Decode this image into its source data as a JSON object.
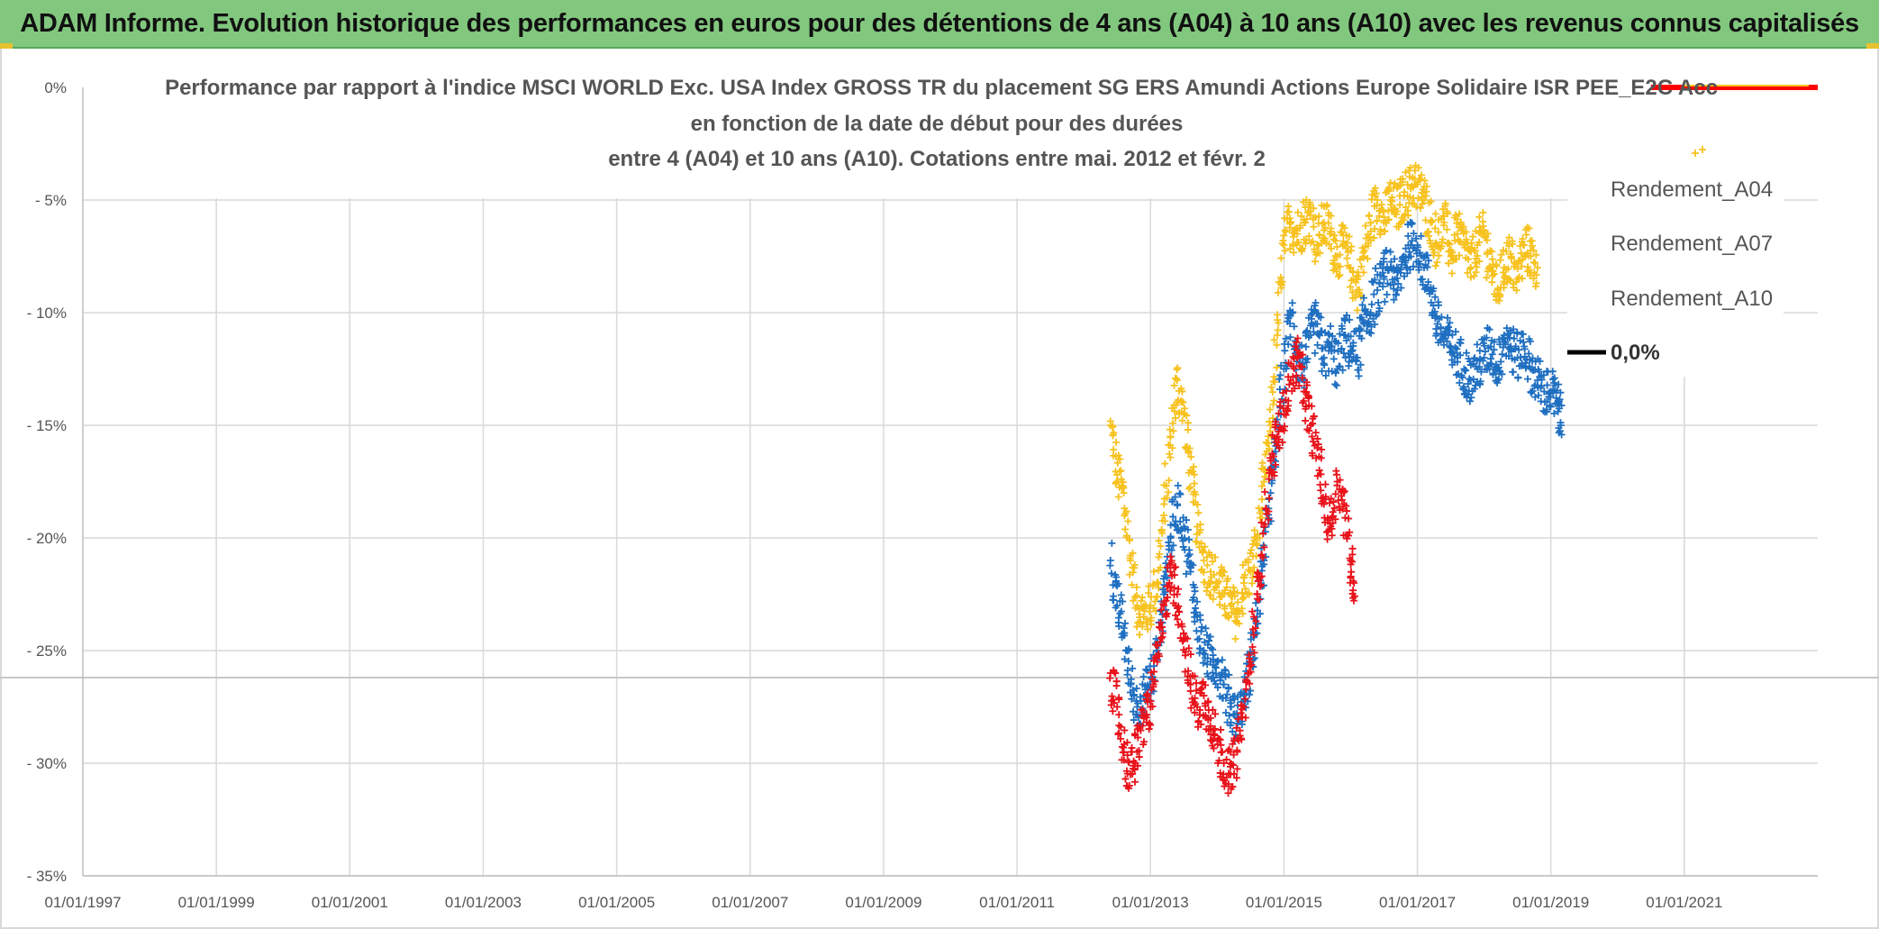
{
  "header": {
    "title": "ADAM Informe. Evolution historique des performances en euros pour des détentions de 4 ans (A04) à 10 ans (A10) avec les revenus connus capitalisés"
  },
  "colors": {
    "banner_bg": "#82c77e",
    "a04": "#f7c21f",
    "a07": "#1f6fc1",
    "a10": "#e8121a",
    "zero_line": "#ff0000",
    "grid": "#d9d9d9"
  },
  "chart_data": {
    "type": "scatter",
    "title_lines": [
      "Performance par rapport à l'indice MSCI WORLD Exc. USA Index GROSS TR  du placement SG ERS Amundi Actions Europe Solidaire ISR PEE_E2C Acc",
      "en fonction de la date de début pour des durées",
      "entre 4 (A04) et 10 ans (A10). Cotations entre mai. 2012 et févr. 2"
    ],
    "xlabel": "",
    "ylabel": "",
    "x_range": [
      1997.0,
      2023.0
    ],
    "ylim": [
      -35,
      0
    ],
    "y_ticks": [
      0,
      -5,
      -10,
      -15,
      -20,
      -25,
      -30,
      -35
    ],
    "y_tick_labels": [
      "0%",
      "- 5%",
      "- 10%",
      "- 15%",
      "- 20%",
      "- 25%",
      "- 30%",
      "- 35%"
    ],
    "x_ticks": [
      1997,
      1999,
      2001,
      2003,
      2005,
      2007,
      2009,
      2011,
      2013,
      2015,
      2017,
      2019,
      2021
    ],
    "x_tick_labels": [
      "01/01/1997",
      "01/01/1999",
      "01/01/2001",
      "01/01/2003",
      "01/01/2005",
      "01/01/2007",
      "01/01/2009",
      "01/01/2011",
      "01/01/2013",
      "01/01/2015",
      "01/01/2017",
      "01/01/2019",
      "01/01/2021"
    ],
    "zero_line": {
      "name": "0,0%",
      "value": 0
    },
    "series": [
      {
        "name": "Rendement_A04",
        "color": "#f7c21f",
        "points": [
          [
            2012.4,
            -15.0
          ],
          [
            2012.5,
            -17.2
          ],
          [
            2012.6,
            -18.0
          ],
          [
            2012.7,
            -21.0
          ],
          [
            2012.8,
            -23.0
          ],
          [
            2012.9,
            -23.5
          ],
          [
            2013.0,
            -23.0
          ],
          [
            2013.1,
            -22.0
          ],
          [
            2013.2,
            -19.0
          ],
          [
            2013.3,
            -15.5
          ],
          [
            2013.4,
            -13.0
          ],
          [
            2013.5,
            -14.5
          ],
          [
            2013.6,
            -17.0
          ],
          [
            2013.7,
            -19.5
          ],
          [
            2013.8,
            -21.0
          ],
          [
            2013.9,
            -21.5
          ],
          [
            2014.0,
            -22.0
          ],
          [
            2014.1,
            -22.5
          ],
          [
            2014.2,
            -23.0
          ],
          [
            2014.3,
            -23.5
          ],
          [
            2014.4,
            -22.0
          ],
          [
            2014.5,
            -21.5
          ],
          [
            2014.6,
            -20.0
          ],
          [
            2014.7,
            -17.5
          ],
          [
            2014.8,
            -15.0
          ],
          [
            2014.9,
            -11.0
          ],
          [
            2015.0,
            -7.0
          ],
          [
            2015.1,
            -6.0
          ],
          [
            2015.2,
            -6.5
          ],
          [
            2015.3,
            -6.0
          ],
          [
            2015.4,
            -5.5
          ],
          [
            2015.5,
            -7.0
          ],
          [
            2015.6,
            -6.0
          ],
          [
            2015.7,
            -6.5
          ],
          [
            2015.8,
            -7.5
          ],
          [
            2015.9,
            -7.0
          ],
          [
            2016.0,
            -8.0
          ],
          [
            2016.1,
            -9.0
          ],
          [
            2016.2,
            -7.5
          ],
          [
            2016.3,
            -6.0
          ],
          [
            2016.4,
            -5.0
          ],
          [
            2016.5,
            -6.0
          ],
          [
            2016.6,
            -5.0
          ],
          [
            2016.7,
            -5.5
          ],
          [
            2016.8,
            -4.8
          ],
          [
            2016.9,
            -4.5
          ],
          [
            2017.0,
            -4.3
          ],
          [
            2017.1,
            -5.0
          ],
          [
            2017.2,
            -6.0
          ],
          [
            2017.3,
            -7.0
          ],
          [
            2017.4,
            -6.0
          ],
          [
            2017.5,
            -7.5
          ],
          [
            2017.6,
            -6.5
          ],
          [
            2017.7,
            -7.0
          ],
          [
            2017.8,
            -8.0
          ],
          [
            2017.9,
            -7.0
          ],
          [
            2018.0,
            -6.5
          ],
          [
            2018.1,
            -8.0
          ],
          [
            2018.2,
            -9.0
          ],
          [
            2018.3,
            -8.0
          ],
          [
            2018.4,
            -7.5
          ],
          [
            2018.5,
            -8.5
          ],
          [
            2018.6,
            -7.0
          ],
          [
            2018.7,
            -7.5
          ],
          [
            2018.8,
            -8.0
          ]
        ]
      },
      {
        "name": "Rendement_A07",
        "color": "#1f6fc1",
        "points": [
          [
            2012.4,
            -21.0
          ],
          [
            2012.5,
            -23.0
          ],
          [
            2012.6,
            -24.0
          ],
          [
            2012.7,
            -26.5
          ],
          [
            2012.8,
            -27.5
          ],
          [
            2012.9,
            -27.0
          ],
          [
            2013.0,
            -26.5
          ],
          [
            2013.1,
            -25.0
          ],
          [
            2013.2,
            -22.5
          ],
          [
            2013.3,
            -20.0
          ],
          [
            2013.4,
            -18.5
          ],
          [
            2013.5,
            -19.5
          ],
          [
            2013.6,
            -21.5
          ],
          [
            2013.7,
            -23.5
          ],
          [
            2013.8,
            -25.0
          ],
          [
            2013.9,
            -25.5
          ],
          [
            2014.0,
            -25.5
          ],
          [
            2014.1,
            -26.5
          ],
          [
            2014.2,
            -27.5
          ],
          [
            2014.3,
            -28.0
          ],
          [
            2014.4,
            -27.0
          ],
          [
            2014.5,
            -25.5
          ],
          [
            2014.6,
            -23.5
          ],
          [
            2014.7,
            -21.0
          ],
          [
            2014.8,
            -18.0
          ],
          [
            2014.9,
            -15.5
          ],
          [
            2015.0,
            -12.5
          ],
          [
            2015.1,
            -10.0
          ],
          [
            2015.2,
            -12.0
          ],
          [
            2015.3,
            -12.5
          ],
          [
            2015.4,
            -11.0
          ],
          [
            2015.5,
            -10.5
          ],
          [
            2015.6,
            -12.0
          ],
          [
            2015.7,
            -11.5
          ],
          [
            2015.8,
            -12.5
          ],
          [
            2015.9,
            -11.0
          ],
          [
            2016.0,
            -11.5
          ],
          [
            2016.1,
            -12.0
          ],
          [
            2016.2,
            -10.5
          ],
          [
            2016.3,
            -10.0
          ],
          [
            2016.4,
            -9.0
          ],
          [
            2016.5,
            -8.5
          ],
          [
            2016.6,
            -8.0
          ],
          [
            2016.7,
            -9.0
          ],
          [
            2016.8,
            -7.5
          ],
          [
            2016.9,
            -7.0
          ],
          [
            2017.0,
            -7.0
          ],
          [
            2017.1,
            -8.0
          ],
          [
            2017.2,
            -9.0
          ],
          [
            2017.3,
            -10.5
          ],
          [
            2017.4,
            -11.0
          ],
          [
            2017.5,
            -11.5
          ],
          [
            2017.6,
            -12.0
          ],
          [
            2017.7,
            -12.5
          ],
          [
            2017.8,
            -13.0
          ],
          [
            2017.9,
            -12.5
          ],
          [
            2018.0,
            -12.0
          ],
          [
            2018.1,
            -11.5
          ],
          [
            2018.2,
            -12.5
          ],
          [
            2018.3,
            -11.0
          ],
          [
            2018.4,
            -11.5
          ],
          [
            2018.5,
            -12.0
          ],
          [
            2018.6,
            -11.5
          ],
          [
            2018.7,
            -12.5
          ],
          [
            2018.8,
            -13.0
          ],
          [
            2018.9,
            -13.5
          ],
          [
            2019.0,
            -13.5
          ],
          [
            2019.1,
            -14.0
          ],
          [
            2019.15,
            -15.0
          ]
        ]
      },
      {
        "name": "Rendement_A10",
        "color": "#e8121a",
        "points": [
          [
            2012.4,
            -26.0
          ],
          [
            2012.5,
            -27.5
          ],
          [
            2012.6,
            -29.5
          ],
          [
            2012.7,
            -30.5
          ],
          [
            2012.8,
            -29.5
          ],
          [
            2012.9,
            -28.0
          ],
          [
            2013.0,
            -27.5
          ],
          [
            2013.1,
            -25.5
          ],
          [
            2013.2,
            -23.0
          ],
          [
            2013.3,
            -21.5
          ],
          [
            2013.4,
            -22.5
          ],
          [
            2013.5,
            -24.5
          ],
          [
            2013.6,
            -26.5
          ],
          [
            2013.7,
            -27.5
          ],
          [
            2013.8,
            -27.0
          ],
          [
            2013.9,
            -28.0
          ],
          [
            2014.0,
            -29.0
          ],
          [
            2014.1,
            -30.0
          ],
          [
            2014.2,
            -30.5
          ],
          [
            2014.3,
            -29.5
          ],
          [
            2014.4,
            -27.5
          ],
          [
            2014.5,
            -25.5
          ],
          [
            2014.6,
            -22.5
          ],
          [
            2014.7,
            -19.5
          ],
          [
            2014.8,
            -17.0
          ],
          [
            2014.9,
            -15.5
          ],
          [
            2015.0,
            -14.5
          ],
          [
            2015.1,
            -13.0
          ],
          [
            2015.2,
            -12.0
          ],
          [
            2015.3,
            -13.5
          ],
          [
            2015.4,
            -15.0
          ],
          [
            2015.5,
            -16.0
          ],
          [
            2015.6,
            -18.5
          ],
          [
            2015.7,
            -19.5
          ],
          [
            2015.8,
            -17.5
          ],
          [
            2015.9,
            -18.5
          ],
          [
            2016.0,
            -21.0
          ],
          [
            2016.05,
            -22.0
          ]
        ]
      }
    ],
    "legend": [
      "Rendement_A04",
      "Rendement_A07",
      "Rendement_A10",
      "0,0%"
    ],
    "legend_position": "top-right",
    "grid": true
  }
}
